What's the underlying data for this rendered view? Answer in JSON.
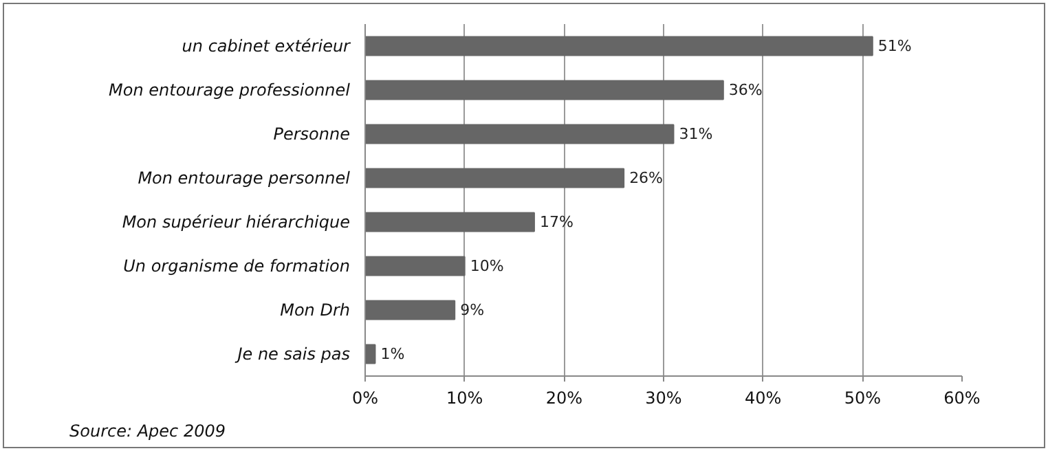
{
  "chart_data": {
    "type": "bar",
    "orientation": "horizontal",
    "categories": [
      "un cabinet extérieur",
      "Mon entourage professionnel",
      "Personne",
      "Mon entourage personnel",
      "Mon supérieur hiérarchique",
      "Un organisme de formation",
      "Mon Drh",
      "Je ne sais pas"
    ],
    "values": [
      51,
      36,
      31,
      26,
      17,
      10,
      9,
      1
    ],
    "value_labels": [
      "51%",
      "36%",
      "31%",
      "26%",
      "17%",
      "10%",
      "9%",
      "1%"
    ],
    "color": "#666666",
    "xlim": [
      0,
      60
    ],
    "xticks": [
      {
        "value": 0,
        "label": "0%"
      },
      {
        "value": 10,
        "label": "10%"
      },
      {
        "value": 20,
        "label": "20%"
      },
      {
        "value": 30,
        "label": "30%"
      },
      {
        "value": 40,
        "label": "40%"
      },
      {
        "value": 50,
        "label": "50%"
      },
      {
        "value": 60,
        "label": "60%"
      }
    ],
    "grid": "x",
    "annotations": [
      "Source: Apec 2009"
    ]
  }
}
